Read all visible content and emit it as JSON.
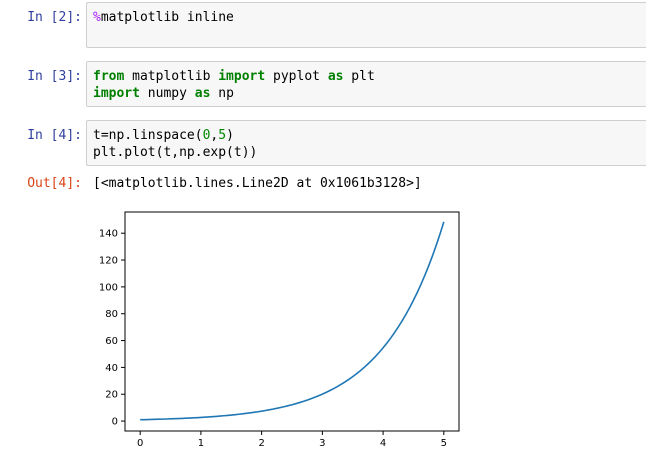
{
  "cells": [
    {
      "prompt": "In [2]:",
      "lines": [
        [
          {
            "t": "%",
            "c": "magic"
          },
          {
            "t": "matplotlib inline",
            "c": ""
          }
        ]
      ]
    },
    {
      "prompt": "In [3]:",
      "lines": [
        [
          {
            "t": "from",
            "c": "kw"
          },
          {
            "t": " matplotlib ",
            "c": ""
          },
          {
            "t": "import",
            "c": "kw"
          },
          {
            "t": " pyplot ",
            "c": ""
          },
          {
            "t": "as",
            "c": "kw"
          },
          {
            "t": " plt",
            "c": ""
          }
        ],
        [
          {
            "t": "import",
            "c": "kw"
          },
          {
            "t": " numpy ",
            "c": ""
          },
          {
            "t": "as",
            "c": "kw"
          },
          {
            "t": " np",
            "c": ""
          }
        ]
      ]
    },
    {
      "prompt": "In [4]:",
      "lines": [
        [
          {
            "t": "t=np.linspace(",
            "c": ""
          },
          {
            "t": "0",
            "c": "num"
          },
          {
            "t": ",",
            "c": ""
          },
          {
            "t": "5",
            "c": "num"
          },
          {
            "t": ")",
            "c": ""
          }
        ],
        [
          {
            "t": "plt.plot(t,np.exp(t))",
            "c": ""
          }
        ]
      ]
    }
  ],
  "output": {
    "prompt": "Out[4]:",
    "text": "[<matplotlib.lines.Line2D at 0x1061b3128>]"
  },
  "chart_data": {
    "type": "line",
    "title": "",
    "xlabel": "",
    "ylabel": "",
    "xlim": [
      -0.25,
      5.25
    ],
    "ylim": [
      -7.4,
      155.8
    ],
    "xticks": [
      0,
      1,
      2,
      3,
      4,
      5
    ],
    "yticks": [
      0,
      20,
      40,
      60,
      80,
      100,
      120,
      140
    ],
    "grid": false,
    "series": [
      {
        "color": "#1f77b4",
        "x": [
          0,
          0.5,
          1,
          1.5,
          2,
          2.5,
          3,
          3.5,
          4,
          4.5,
          5
        ],
        "y": [
          1.0,
          1.65,
          2.72,
          4.48,
          7.39,
          12.18,
          20.09,
          33.12,
          54.6,
          90.02,
          148.41
        ]
      }
    ]
  }
}
